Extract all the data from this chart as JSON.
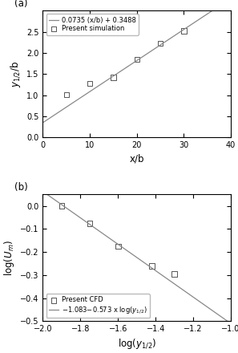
{
  "panel_a": {
    "label": "(a)",
    "scatter_x": [
      5,
      10,
      15,
      20,
      25,
      30
    ],
    "scatter_y": [
      1.01,
      1.28,
      1.42,
      1.85,
      2.23,
      2.52
    ],
    "line_slope": 0.0735,
    "line_intercept": 0.3488,
    "line_x": [
      0,
      37
    ],
    "xlabel": "x/b",
    "ylabel": "$y_{1/2}$/b",
    "xlim": [
      0,
      40
    ],
    "ylim": [
      0,
      3
    ],
    "xticks": [
      0,
      10,
      20,
      30,
      40
    ],
    "yticks": [
      0,
      0.5,
      1.0,
      1.5,
      2.0,
      2.5
    ],
    "legend_line": "0.0735 (x/b) + 0.3488",
    "legend_scatter": "Present simulation",
    "line_color": "#888888"
  },
  "panel_b": {
    "label": "(b)",
    "scatter_x": [
      -1.9,
      -1.75,
      -1.6,
      -1.42,
      -1.3
    ],
    "scatter_y": [
      0.0,
      -0.075,
      -0.175,
      -0.26,
      -0.295
    ],
    "line_slope": -0.573,
    "line_intercept": -1.083,
    "line_x": [
      -2.0,
      -1.0
    ],
    "xlabel": "log($y_{1/2}$)",
    "ylabel": "log($U_{m}$)",
    "xlim": [
      -2.0,
      -1.0
    ],
    "ylim": [
      -0.5,
      0.05
    ],
    "xticks": [
      -2.0,
      -1.8,
      -1.6,
      -1.4,
      -1.2,
      -1.0
    ],
    "yticks": [
      -0.5,
      -0.4,
      -0.3,
      -0.2,
      -0.1,
      0.0
    ],
    "legend_scatter": "Present CFD",
    "legend_line": "$-$1.083$-$0.573 x log($y_{1/2}$)",
    "line_color": "#888888"
  },
  "figure_bg": "#ffffff",
  "scatter_color": "#555555",
  "scatter_size": 22,
  "scatter_marker": "s",
  "scatter_facecolor": "none",
  "fontsize": 7.5,
  "label_fontsize": 8.5,
  "tick_fontsize": 7
}
